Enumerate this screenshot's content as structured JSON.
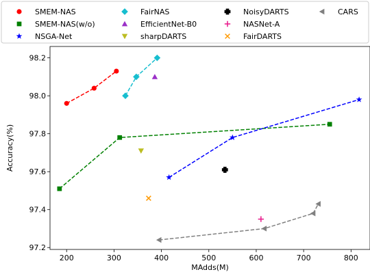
{
  "chart_data": {
    "type": "scatter",
    "xlabel": "MAdds(M)",
    "ylabel": "Accuracy(%)",
    "xlim": [
      165,
      840
    ],
    "ylim": [
      97.19,
      98.26
    ],
    "xticks": [
      "200",
      "300",
      "400",
      "500",
      "600",
      "700",
      "800"
    ],
    "yticks": [
      "97.2",
      "97.4",
      "97.6",
      "97.8",
      "98.0",
      "98.2"
    ],
    "grid": false,
    "legend_position": "top",
    "series": [
      {
        "name": "SMEM-NAS",
        "color": "#ff0000",
        "marker": "circle",
        "connected": true,
        "points": [
          {
            "x": 200,
            "y": 97.96
          },
          {
            "x": 258,
            "y": 98.04
          },
          {
            "x": 305,
            "y": 98.13
          }
        ]
      },
      {
        "name": "SMEM-NAS(w/o)",
        "color": "#008000",
        "marker": "square",
        "connected": true,
        "points": [
          {
            "x": 185,
            "y": 97.51
          },
          {
            "x": 312,
            "y": 97.78
          },
          {
            "x": 755,
            "y": 97.85
          }
        ]
      },
      {
        "name": "NSGA-Net",
        "color": "#0000ff",
        "marker": "star",
        "connected": true,
        "points": [
          {
            "x": 416,
            "y": 97.57
          },
          {
            "x": 550,
            "y": 97.78
          },
          {
            "x": 817,
            "y": 97.98
          }
        ]
      },
      {
        "name": "FairNAS",
        "color": "#17becf",
        "marker": "diamond",
        "connected": true,
        "points": [
          {
            "x": 324,
            "y": 98.0
          },
          {
            "x": 347,
            "y": 98.1
          },
          {
            "x": 391,
            "y": 98.2
          }
        ]
      },
      {
        "name": "EfficientNet-B0",
        "color": "#9b30c8",
        "marker": "triangle-up",
        "connected": false,
        "points": [
          {
            "x": 386,
            "y": 98.1
          }
        ]
      },
      {
        "name": "sharpDARTS",
        "color": "#bcbd22",
        "marker": "triangle-down",
        "connected": false,
        "points": [
          {
            "x": 357,
            "y": 97.71
          }
        ]
      },
      {
        "name": "NoisyDARTS",
        "color": "#000000",
        "marker": "plus-thick",
        "connected": false,
        "points": [
          {
            "x": 534,
            "y": 97.61
          }
        ]
      },
      {
        "name": "NASNet-A",
        "color": "#e8178a",
        "marker": "plus-thin",
        "connected": false,
        "points": [
          {
            "x": 610,
            "y": 97.35
          }
        ]
      },
      {
        "name": "FairDARTS",
        "color": "#ff9900",
        "marker": "x",
        "connected": false,
        "points": [
          {
            "x": 373,
            "y": 97.46
          }
        ]
      },
      {
        "name": "CARS",
        "color": "#808080",
        "marker": "triangle-left",
        "connected": true,
        "points": [
          {
            "x": 395,
            "y": 97.24
          },
          {
            "x": 617,
            "y": 97.3
          },
          {
            "x": 720,
            "y": 97.38
          },
          {
            "x": 731,
            "y": 97.43
          }
        ]
      }
    ]
  }
}
